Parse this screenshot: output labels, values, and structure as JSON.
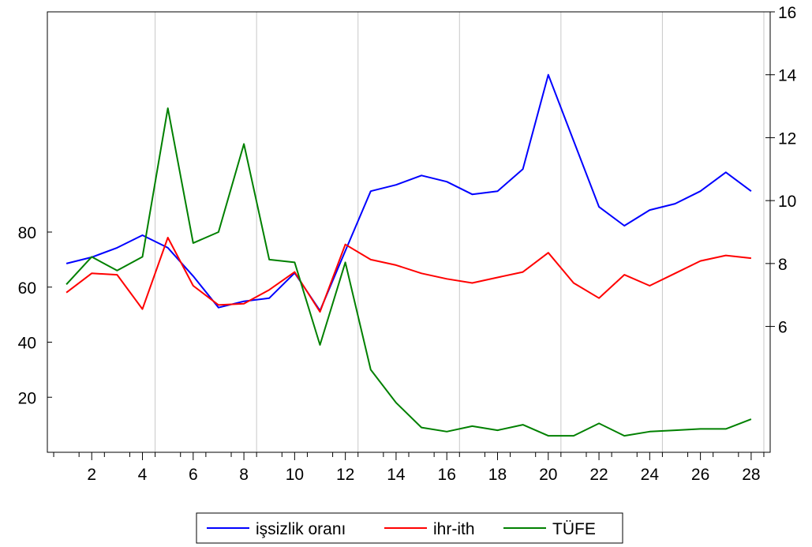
{
  "chart_data": {
    "type": "line",
    "title": "",
    "xlabel": "",
    "x": [
      1,
      2,
      3,
      4,
      5,
      6,
      7,
      8,
      9,
      10,
      11,
      12,
      13,
      14,
      15,
      16,
      17,
      18,
      19,
      20,
      21,
      22,
      23,
      24,
      25,
      26,
      27,
      28
    ],
    "x_tick_labels": [
      "2",
      "4",
      "6",
      "8",
      "10",
      "12",
      "14",
      "16",
      "18",
      "20",
      "22",
      "24",
      "26",
      "28"
    ],
    "left_axis": {
      "ylim": [
        0,
        160
      ],
      "ticks": [
        "20",
        "40",
        "60",
        "80"
      ]
    },
    "right_axis": {
      "ylim": [
        2,
        16
      ],
      "ticks": [
        "6",
        "8",
        "10",
        "12",
        "14",
        "16"
      ]
    },
    "grid": "vertical",
    "legend_position": "bottom-center",
    "series": [
      {
        "name": "işsizlik oranı",
        "color": "#0000ff",
        "axis": "right",
        "values": [
          8.0,
          8.2,
          8.5,
          8.9,
          8.5,
          7.6,
          6.6,
          6.8,
          6.9,
          7.7,
          6.5,
          8.4,
          10.3,
          10.5,
          10.8,
          10.6,
          10.2,
          10.3,
          11.0,
          14.0,
          11.9,
          9.8,
          9.2,
          9.7,
          9.9,
          10.3,
          10.9,
          10.3
        ]
      },
      {
        "name": "ihr-ith",
        "color": "#ff0000",
        "axis": "left",
        "values": [
          58,
          65,
          64.5,
          52,
          78,
          60.5,
          53.5,
          54,
          59,
          65.5,
          51,
          75.5,
          70,
          68,
          65,
          63,
          61.5,
          63.5,
          65.5,
          72.5,
          61.5,
          56,
          64.5,
          60.5,
          65,
          69.5,
          71.5,
          70.5
        ]
      },
      {
        "name": "TÜFE",
        "color": "#008000",
        "axis": "left",
        "values": [
          61,
          71,
          66,
          71,
          125,
          76,
          80,
          112,
          70,
          69,
          39,
          69,
          30,
          18,
          9,
          7.5,
          9.5,
          8,
          10,
          6,
          6,
          10.5,
          6,
          7.5,
          8,
          8.5,
          8.5,
          12
        ]
      }
    ]
  }
}
